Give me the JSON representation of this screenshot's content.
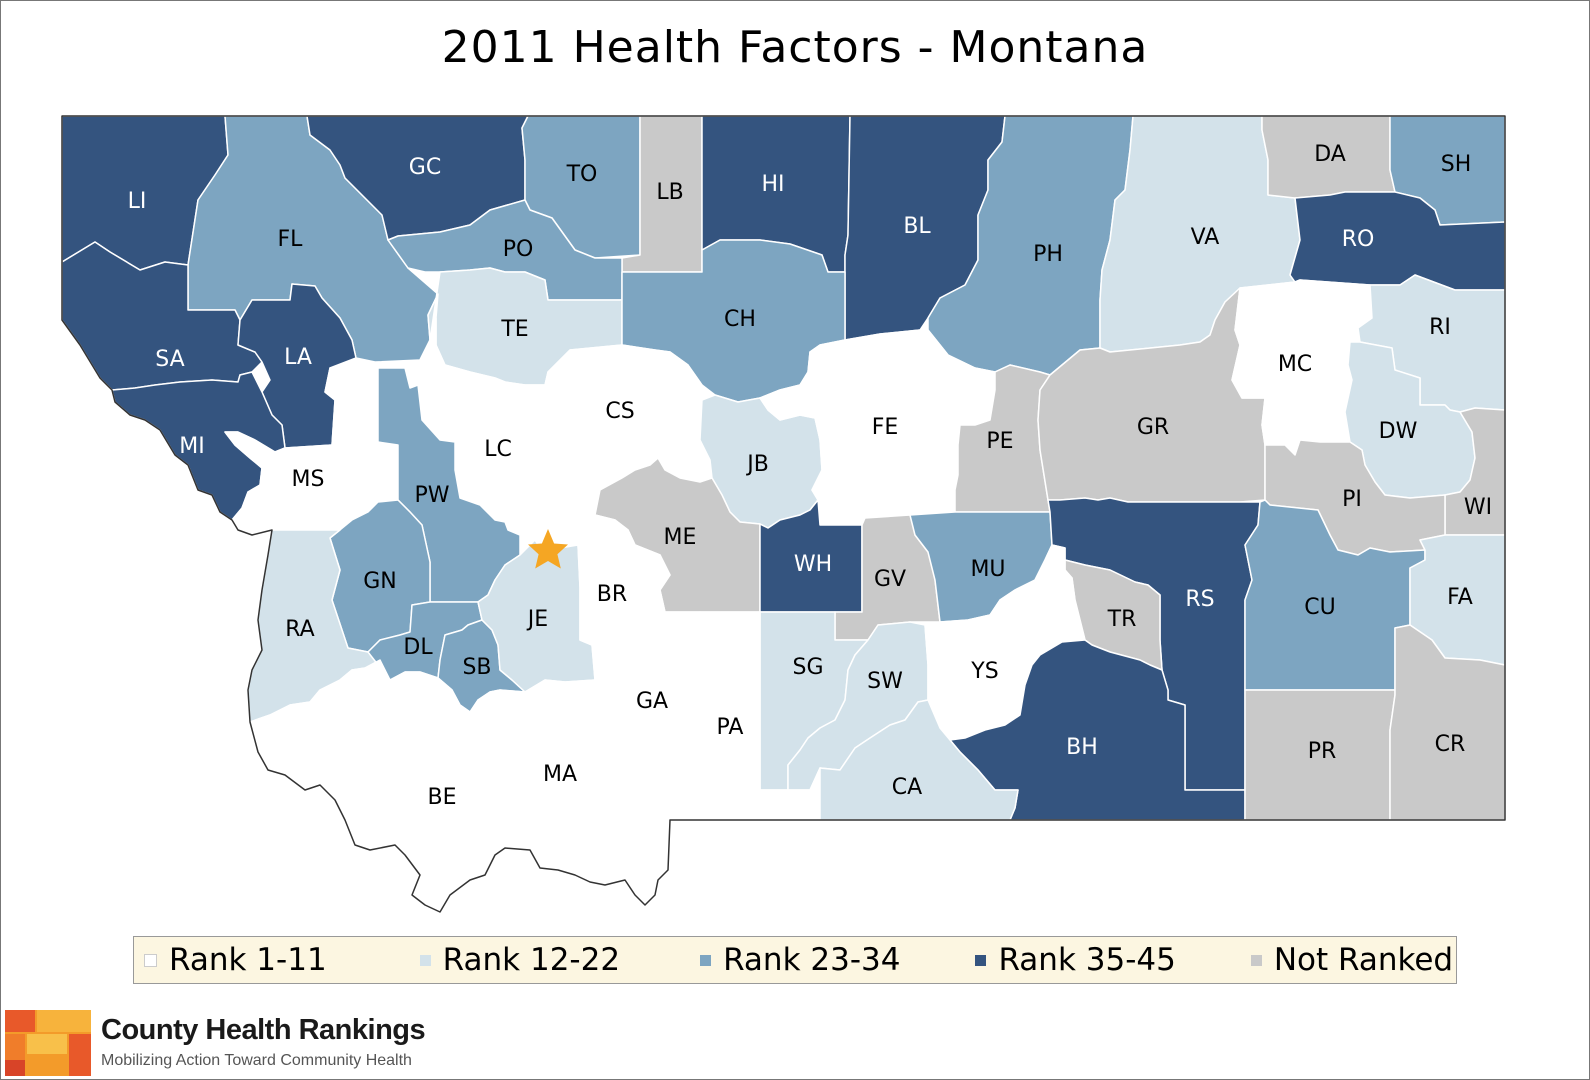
{
  "title": "2011 Health Factors - Montana",
  "colors": {
    "rank1": "#ffffff",
    "rank2": "#d3e2ea",
    "rank3": "#7da5c1",
    "rank4": "#34547f",
    "notranked": "#c9c9c9",
    "outline": "#333333",
    "star": "#f5a623"
  },
  "legend": [
    {
      "label": "Rank 1-11",
      "class": "rank1"
    },
    {
      "label": "Rank 12-22",
      "class": "rank2"
    },
    {
      "label": "Rank 23-34",
      "class": "rank3"
    },
    {
      "label": "Rank 35-45",
      "class": "rank4"
    },
    {
      "label": "Not Ranked",
      "class": "notranked"
    }
  ],
  "counties": [
    {
      "code": "LI",
      "class": "rank4"
    },
    {
      "code": "FL",
      "class": "rank3"
    },
    {
      "code": "GC",
      "class": "rank4"
    },
    {
      "code": "TO",
      "class": "rank3"
    },
    {
      "code": "LB",
      "class": "notranked"
    },
    {
      "code": "HI",
      "class": "rank4"
    },
    {
      "code": "BL",
      "class": "rank4"
    },
    {
      "code": "PH",
      "class": "rank3"
    },
    {
      "code": "VA",
      "class": "rank2"
    },
    {
      "code": "DA",
      "class": "notranked"
    },
    {
      "code": "SH",
      "class": "rank3"
    },
    {
      "code": "RO",
      "class": "rank4"
    },
    {
      "code": "PO",
      "class": "rank3"
    },
    {
      "code": "TE",
      "class": "rank2"
    },
    {
      "code": "CH",
      "class": "rank3"
    },
    {
      "code": "SA",
      "class": "rank4"
    },
    {
      "code": "LA",
      "class": "rank4"
    },
    {
      "code": "MI",
      "class": "rank4"
    },
    {
      "code": "MS",
      "class": "rank1"
    },
    {
      "code": "LC",
      "class": "rank1"
    },
    {
      "code": "CS",
      "class": "rank1"
    },
    {
      "code": "JB",
      "class": "rank2"
    },
    {
      "code": "FE",
      "class": "rank1"
    },
    {
      "code": "PE",
      "class": "notranked"
    },
    {
      "code": "GR",
      "class": "notranked"
    },
    {
      "code": "MC",
      "class": "rank1"
    },
    {
      "code": "RI",
      "class": "rank2"
    },
    {
      "code": "DW",
      "class": "rank2"
    },
    {
      "code": "WI",
      "class": "notranked"
    },
    {
      "code": "PI",
      "class": "notranked"
    },
    {
      "code": "PW",
      "class": "rank3"
    },
    {
      "code": "ME",
      "class": "notranked"
    },
    {
      "code": "WH",
      "class": "rank4"
    },
    {
      "code": "GV",
      "class": "notranked"
    },
    {
      "code": "MU",
      "class": "rank3"
    },
    {
      "code": "RS",
      "class": "rank4"
    },
    {
      "code": "CU",
      "class": "rank3"
    },
    {
      "code": "FA",
      "class": "rank2"
    },
    {
      "code": "GN",
      "class": "rank3"
    },
    {
      "code": "RA",
      "class": "rank2"
    },
    {
      "code": "DL",
      "class": "rank3"
    },
    {
      "code": "SB",
      "class": "rank3"
    },
    {
      "code": "JE",
      "class": "rank2"
    },
    {
      "code": "BR",
      "class": "rank1"
    },
    {
      "code": "TR",
      "class": "notranked"
    },
    {
      "code": "SG",
      "class": "rank2"
    },
    {
      "code": "SW",
      "class": "rank2"
    },
    {
      "code": "YS",
      "class": "rank1"
    },
    {
      "code": "BH",
      "class": "rank4"
    },
    {
      "code": "PR",
      "class": "notranked"
    },
    {
      "code": "CR",
      "class": "notranked"
    },
    {
      "code": "GA",
      "class": "rank1"
    },
    {
      "code": "PA",
      "class": "rank1"
    },
    {
      "code": "BE",
      "class": "rank1"
    },
    {
      "code": "MA",
      "class": "rank1"
    },
    {
      "code": "CA",
      "class": "rank2"
    }
  ],
  "capital": {
    "name": "star-icon"
  },
  "logo": {
    "title": "County Health Rankings",
    "subtitle": "Mobilizing Action Toward Community Health"
  }
}
